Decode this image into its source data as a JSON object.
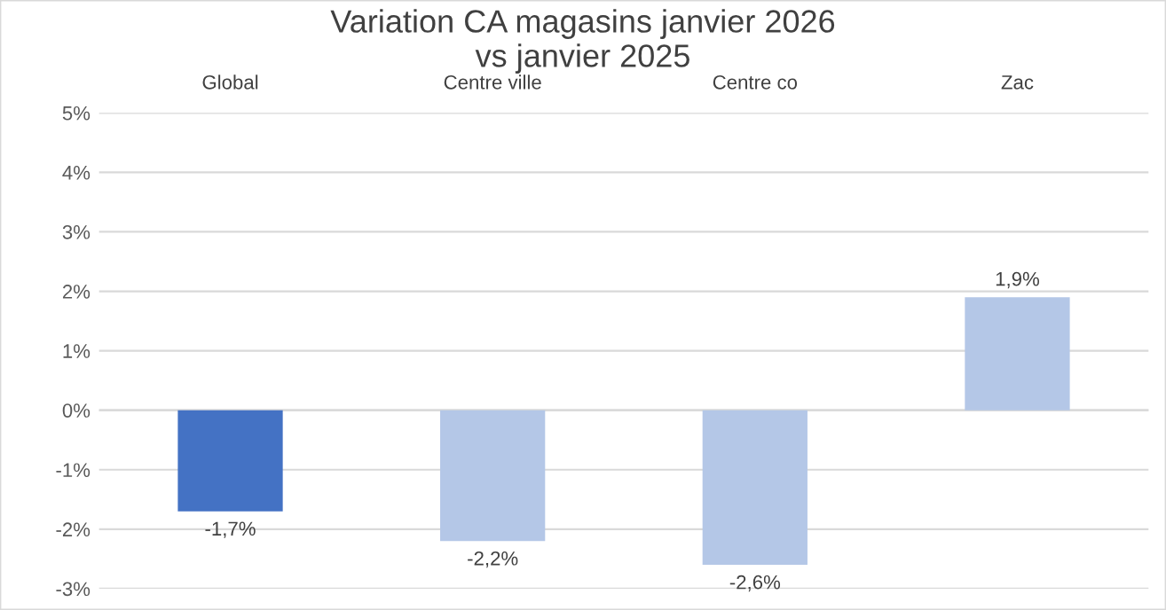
{
  "chart_data": {
    "type": "bar",
    "title": "Variation CA magasins janvier 2026\nvs janvier 2025",
    "categories": [
      "Global",
      "Centre ville",
      "Centre co",
      "Zac"
    ],
    "values": [
      -1.7,
      -2.2,
      -2.6,
      1.9
    ],
    "colors": [
      "#4472c4",
      "#b4c7e7",
      "#b4c7e7",
      "#b4c7e7"
    ],
    "value_labels": [
      "-1,7%",
      "-2,2%",
      "-2,6%",
      "1,9%"
    ],
    "ylim": [
      -3,
      5
    ],
    "yticks": [
      {
        "value": -3,
        "label": "-3%"
      },
      {
        "value": -2,
        "label": "-2%"
      },
      {
        "value": -1,
        "label": "-1%"
      },
      {
        "value": 0,
        "label": "0%"
      },
      {
        "value": 1,
        "label": "1%"
      },
      {
        "value": 2,
        "label": "2%"
      },
      {
        "value": 3,
        "label": "3%"
      },
      {
        "value": 4,
        "label": "4%"
      },
      {
        "value": 5,
        "label": "5%"
      }
    ],
    "grid": "y"
  }
}
